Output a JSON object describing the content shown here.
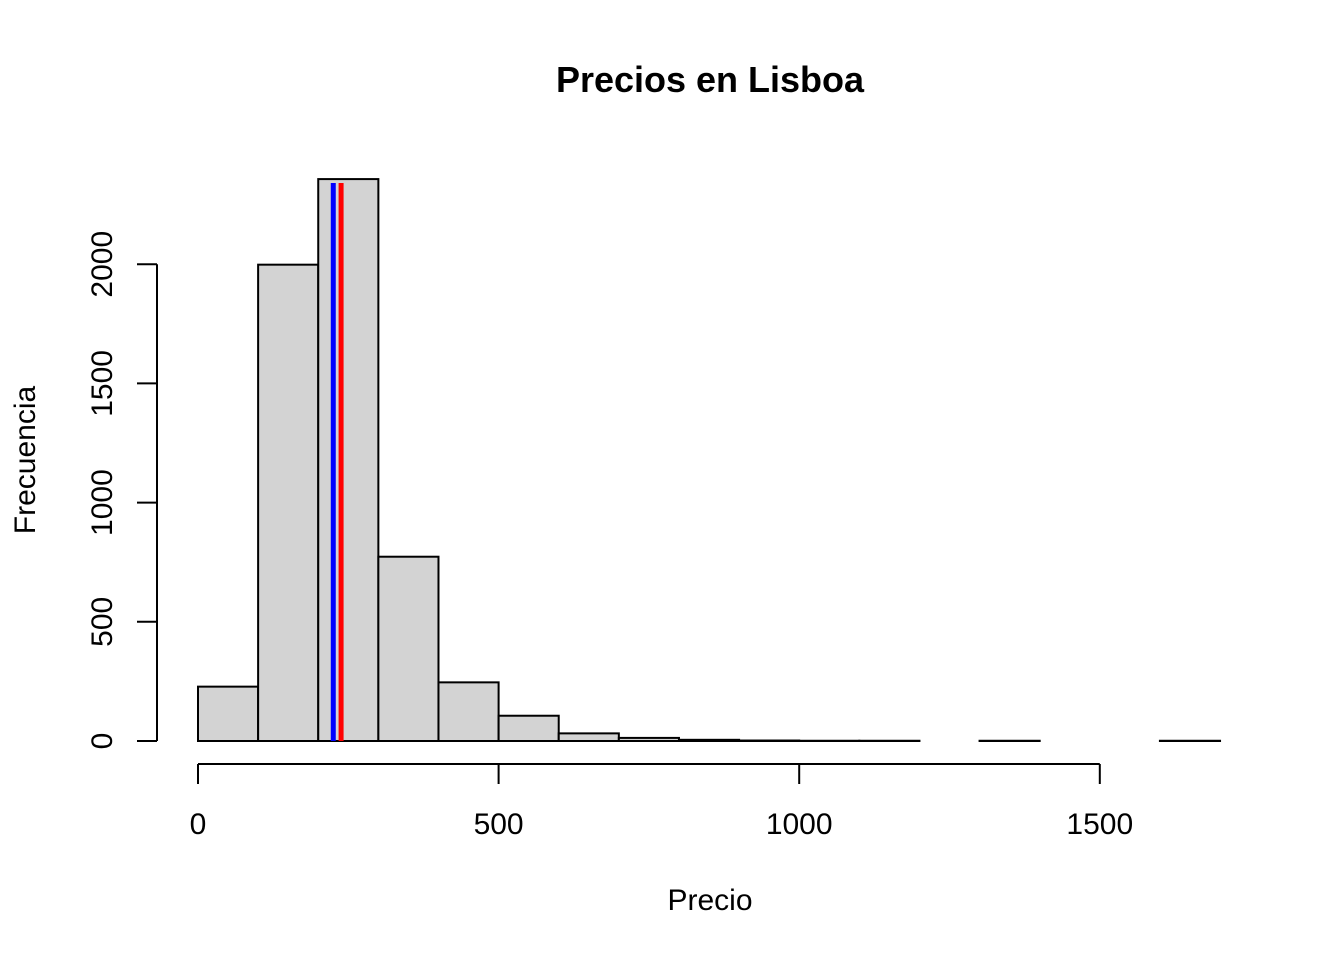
{
  "chart_data": {
    "type": "bar",
    "title": "Precios en Lisboa",
    "xlabel": "Precio",
    "ylabel": "Frecuencia",
    "bins": [
      {
        "from": 0,
        "to": 100,
        "count": 228
      },
      {
        "from": 100,
        "to": 200,
        "count": 1998
      },
      {
        "from": 200,
        "to": 300,
        "count": 2357
      },
      {
        "from": 300,
        "to": 400,
        "count": 773
      },
      {
        "from": 400,
        "to": 500,
        "count": 246
      },
      {
        "from": 500,
        "to": 600,
        "count": 106
      },
      {
        "from": 600,
        "to": 700,
        "count": 32
      },
      {
        "from": 700,
        "to": 800,
        "count": 13
      },
      {
        "from": 800,
        "to": 900,
        "count": 5
      },
      {
        "from": 900,
        "to": 1000,
        "count": 2
      },
      {
        "from": 1000,
        "to": 1100,
        "count": 1
      },
      {
        "from": 1100,
        "to": 1200,
        "count": 1
      },
      {
        "from": 1200,
        "to": 1300,
        "count": 0
      },
      {
        "from": 1300,
        "to": 1400,
        "count": 1
      },
      {
        "from": 1400,
        "to": 1500,
        "count": 0
      },
      {
        "from": 1500,
        "to": 1600,
        "count": 0
      },
      {
        "from": 1600,
        "to": 1700,
        "count": 1
      }
    ],
    "xticks": [
      0,
      500,
      1000,
      1500
    ],
    "yticks": [
      0,
      500,
      1000,
      1500,
      2000
    ],
    "xlim": [
      0,
      1700
    ],
    "ylim": [
      0,
      2500
    ],
    "bar_color": "#d3d3d3",
    "vlines": [
      {
        "x": 225,
        "color": "#0000ff"
      },
      {
        "x": 238,
        "color": "#ff0000"
      }
    ],
    "grid": false
  }
}
